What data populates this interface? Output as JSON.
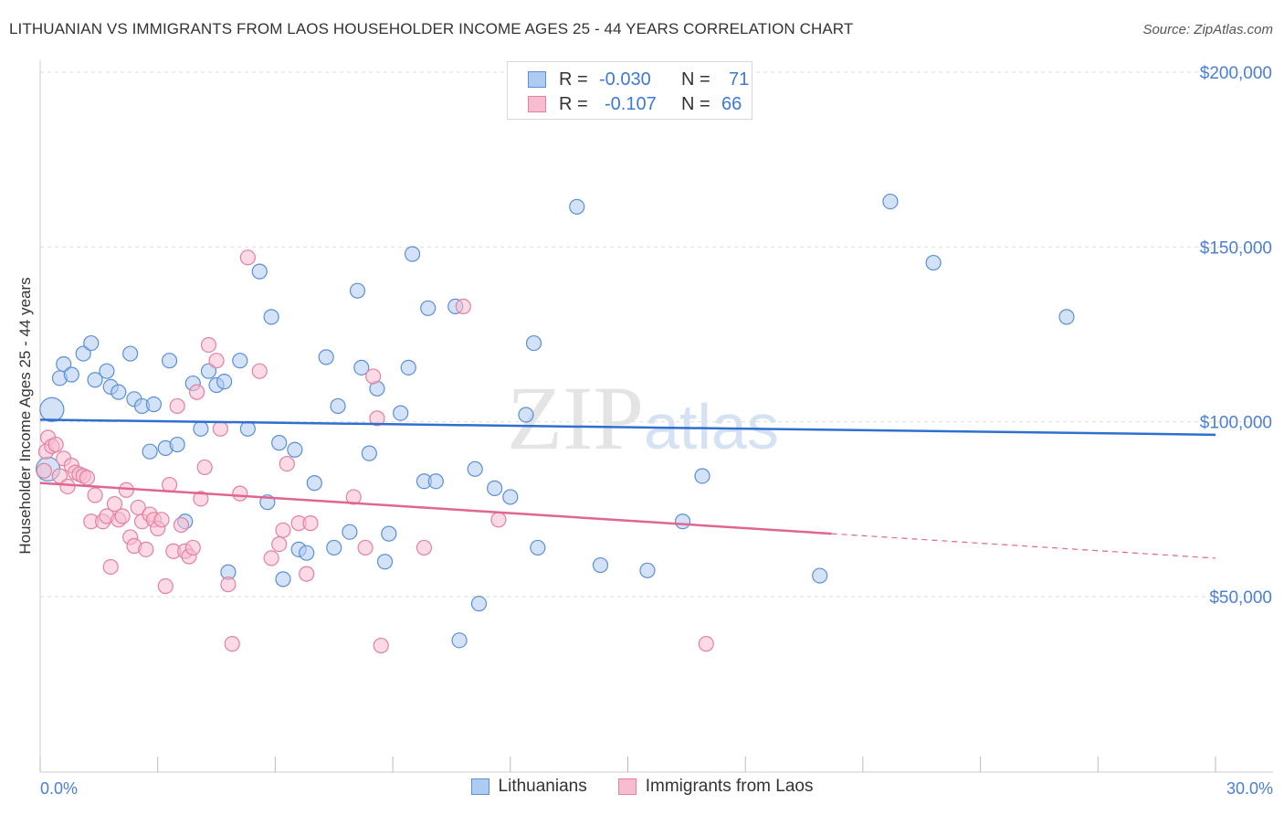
{
  "title": "LITHUANIAN VS IMMIGRANTS FROM LAOS HOUSEHOLDER INCOME AGES 25 - 44 YEARS CORRELATION CHART",
  "source": "Source: ZipAtlas.com",
  "watermark": {
    "zip": "ZIP",
    "atlas": "atlas"
  },
  "legend_top": [
    {
      "r_label": "R =",
      "r_value": "-0.030",
      "n_label": "N =",
      "n_value": "71"
    },
    {
      "r_label": "R =",
      "r_value": "-0.107",
      "n_label": "N =",
      "n_value": "66"
    }
  ],
  "legend_bottom": [
    "Lithuanians",
    "Immigrants from Laos"
  ],
  "colors": {
    "blue_fill": "#aecbf0",
    "blue_stroke": "#5b8fd6",
    "blue_line": "#2f6fd0",
    "pink_fill": "#f7bcd0",
    "pink_stroke": "#e3819f",
    "pink_line": "#e0658f",
    "tick_text": "#4a7fd4",
    "grid": "#dddddd"
  },
  "chart_data": {
    "type": "scatter",
    "title": "LITHUANIAN VS IMMIGRANTS FROM LAOS HOUSEHOLDER INCOME AGES 25 - 44 YEARS CORRELATION CHART",
    "xlabel": "",
    "ylabel": "Householder Income Ages 25 - 44 years",
    "xlim": [
      0,
      30
    ],
    "ylim": [
      0,
      210000
    ],
    "x_tick_labels": [
      "0.0%",
      "30.0%"
    ],
    "y_ticks": [
      50000,
      100000,
      150000,
      200000
    ],
    "y_tick_labels": [
      "$50,000",
      "$100,000",
      "$150,000",
      "$200,000"
    ],
    "grid": true,
    "legend_position": "top-center",
    "series": [
      {
        "name": "Lithuanians",
        "r": -0.03,
        "n": 71,
        "trend": {
          "x": [
            0,
            30
          ],
          "y": [
            100600,
            96300
          ]
        },
        "points": [
          [
            0.3,
            103500
          ],
          [
            0.5,
            112500
          ],
          [
            0.6,
            116500
          ],
          [
            0.8,
            113500
          ],
          [
            1.1,
            119500
          ],
          [
            1.3,
            122500
          ],
          [
            1.4,
            112000
          ],
          [
            1.7,
            114500
          ],
          [
            1.8,
            110000
          ],
          [
            2.0,
            108500
          ],
          [
            2.3,
            119500
          ],
          [
            2.4,
            106500
          ],
          [
            2.6,
            104500
          ],
          [
            2.8,
            91500
          ],
          [
            2.9,
            105000
          ],
          [
            3.2,
            92500
          ],
          [
            3.3,
            117500
          ],
          [
            3.5,
            93500
          ],
          [
            3.7,
            71500
          ],
          [
            3.9,
            111000
          ],
          [
            4.1,
            98000
          ],
          [
            4.3,
            114500
          ],
          [
            4.5,
            110500
          ],
          [
            4.7,
            111500
          ],
          [
            4.8,
            57000
          ],
          [
            5.1,
            117500
          ],
          [
            5.3,
            98000
          ],
          [
            5.6,
            143000
          ],
          [
            5.8,
            77000
          ],
          [
            5.9,
            130000
          ],
          [
            6.1,
            94000
          ],
          [
            6.2,
            55000
          ],
          [
            6.5,
            92000
          ],
          [
            6.6,
            63500
          ],
          [
            6.8,
            62500
          ],
          [
            7.0,
            82500
          ],
          [
            7.3,
            118500
          ],
          [
            7.5,
            64000
          ],
          [
            7.6,
            104500
          ],
          [
            7.9,
            68500
          ],
          [
            8.1,
            137500
          ],
          [
            8.2,
            115500
          ],
          [
            8.4,
            91000
          ],
          [
            8.6,
            109500
          ],
          [
            8.8,
            60000
          ],
          [
            8.9,
            68000
          ],
          [
            9.2,
            102500
          ],
          [
            9.4,
            115500
          ],
          [
            9.5,
            148000
          ],
          [
            9.8,
            83000
          ],
          [
            9.9,
            132500
          ],
          [
            10.1,
            83000
          ],
          [
            10.6,
            133000
          ],
          [
            10.7,
            37500
          ],
          [
            11.1,
            86500
          ],
          [
            11.2,
            48000
          ],
          [
            11.6,
            81000
          ],
          [
            12.0,
            78500
          ],
          [
            12.4,
            102000
          ],
          [
            12.6,
            122500
          ],
          [
            12.7,
            64000
          ],
          [
            13.7,
            161500
          ],
          [
            14.3,
            59000
          ],
          [
            15.5,
            57500
          ],
          [
            16.4,
            71500
          ],
          [
            16.9,
            84500
          ],
          [
            19.9,
            56000
          ],
          [
            21.7,
            163000
          ],
          [
            22.8,
            145500
          ],
          [
            26.2,
            130000
          ],
          [
            0.2,
            86500
          ]
        ]
      },
      {
        "name": "Immigrants from Laos",
        "r": -0.107,
        "n": 66,
        "trend": {
          "x": [
            0,
            20.2
          ],
          "y": [
            82500,
            68000
          ]
        },
        "trend_dashed": {
          "x": [
            20.2,
            30
          ],
          "y": [
            68000,
            61000
          ]
        },
        "points": [
          [
            0.1,
            86000
          ],
          [
            0.15,
            91500
          ],
          [
            0.2,
            95500
          ],
          [
            0.3,
            93000
          ],
          [
            0.4,
            93500
          ],
          [
            0.5,
            84500
          ],
          [
            0.6,
            89500
          ],
          [
            0.7,
            81500
          ],
          [
            0.8,
            87500
          ],
          [
            0.9,
            85500
          ],
          [
            1.0,
            85000
          ],
          [
            1.1,
            84500
          ],
          [
            1.2,
            84000
          ],
          [
            1.3,
            71500
          ],
          [
            1.4,
            79000
          ],
          [
            1.6,
            71500
          ],
          [
            1.7,
            73000
          ],
          [
            1.8,
            58500
          ],
          [
            1.9,
            76500
          ],
          [
            2.0,
            72000
          ],
          [
            2.1,
            73000
          ],
          [
            2.2,
            80500
          ],
          [
            2.3,
            67000
          ],
          [
            2.4,
            64500
          ],
          [
            2.5,
            75500
          ],
          [
            2.6,
            71500
          ],
          [
            2.7,
            63500
          ],
          [
            2.8,
            73500
          ],
          [
            2.9,
            72000
          ],
          [
            3.0,
            69500
          ],
          [
            3.1,
            72000
          ],
          [
            3.2,
            53000
          ],
          [
            3.3,
            82000
          ],
          [
            3.4,
            63000
          ],
          [
            3.5,
            104500
          ],
          [
            3.6,
            70500
          ],
          [
            3.7,
            63000
          ],
          [
            3.8,
            61500
          ],
          [
            3.9,
            64000
          ],
          [
            4.0,
            108500
          ],
          [
            4.1,
            78000
          ],
          [
            4.2,
            87000
          ],
          [
            4.3,
            122000
          ],
          [
            4.5,
            117500
          ],
          [
            4.6,
            98000
          ],
          [
            4.8,
            53500
          ],
          [
            4.9,
            36500
          ],
          [
            5.1,
            79500
          ],
          [
            5.3,
            147000
          ],
          [
            5.6,
            114500
          ],
          [
            5.9,
            61000
          ],
          [
            6.2,
            69000
          ],
          [
            6.3,
            88000
          ],
          [
            6.6,
            71000
          ],
          [
            6.8,
            56500
          ],
          [
            6.9,
            71000
          ],
          [
            8.0,
            78500
          ],
          [
            8.3,
            64000
          ],
          [
            8.5,
            113000
          ],
          [
            8.6,
            101000
          ],
          [
            8.7,
            36000
          ],
          [
            9.8,
            64000
          ],
          [
            10.8,
            133000
          ],
          [
            11.7,
            72000
          ],
          [
            17.0,
            36500
          ],
          [
            6.1,
            65000
          ]
        ]
      }
    ]
  }
}
